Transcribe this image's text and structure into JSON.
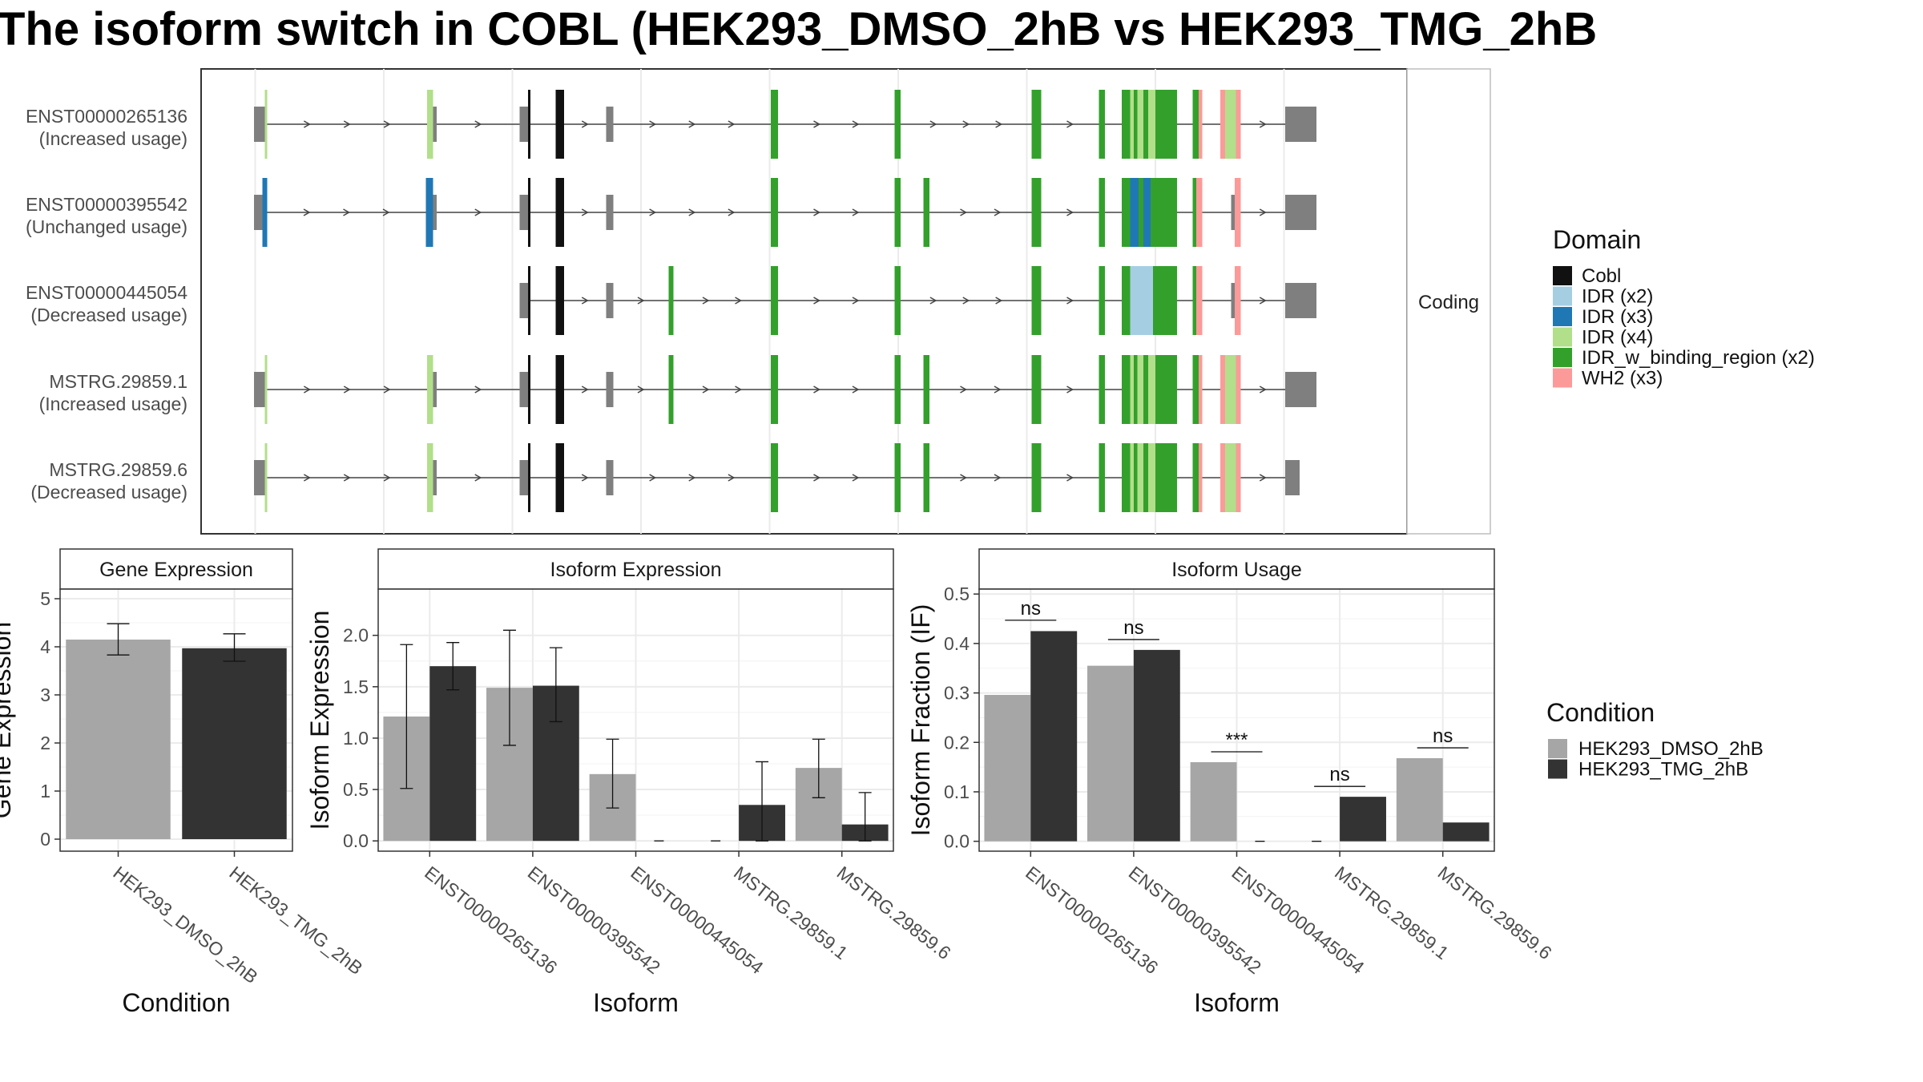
{
  "title": "The isoform switch in COBL (HEK293_DMSO_2hB vs HEK293_TMG_2hB",
  "colors": {
    "dmso": "#a6a6a6",
    "tmg": "#333333",
    "intron": "#444444",
    "utr": "#7f7f7f",
    "panel_border": "#333333",
    "strip_fill": "#ffffff",
    "grid": "#ebebeb"
  },
  "chart_data": [
    {
      "type": "gene_structure",
      "facet_label": "Coding",
      "legend_title": "Domain",
      "domains": [
        {
          "name": "Cobl",
          "color": "#111111"
        },
        {
          "name": "IDR (x2)",
          "color": "#a6cee3"
        },
        {
          "name": "IDR (x3)",
          "color": "#1f78b4"
        },
        {
          "name": "IDR (x4)",
          "color": "#b2df8a"
        },
        {
          "name": "IDR_w_binding_region (x2)",
          "color": "#33a02c"
        },
        {
          "name": "WH2 (x3)",
          "color": "#fb9a99"
        }
      ],
      "transcripts": [
        {
          "id": "ENST00000265136",
          "usage": "(Increased usage)",
          "start": 209,
          "end": 1088,
          "exons": [
            [
              204,
              213,
              "utr"
            ],
            [
              213,
              215,
              "IDR (x4)"
            ],
            [
              348,
              353,
              "IDR (x4)"
            ],
            [
              353,
              356,
              "utr"
            ],
            [
              425,
              432,
              "utr"
            ],
            [
              432,
              434,
              "Cobl"
            ],
            [
              455,
              462,
              "Cobl"
            ],
            [
              497,
              503,
              "utr"
            ],
            [
              634,
              640,
              "IDR_w_binding_region (x2)"
            ],
            [
              737,
              742,
              "IDR_w_binding_region (x2)"
            ],
            [
              851,
              859,
              "IDR_w_binding_region (x2)"
            ],
            [
              907,
              912,
              "IDR_w_binding_region (x2)"
            ],
            [
              926,
              933,
              "IDR_w_binding_region (x2)"
            ],
            [
              933,
              936,
              "IDR (x4)"
            ],
            [
              936,
              939,
              "IDR_w_binding_region (x2)"
            ],
            [
              939,
              944,
              "IDR (x4)"
            ],
            [
              944,
              948,
              "IDR_w_binding_region (x2)"
            ],
            [
              948,
              954,
              "IDR (x4)"
            ],
            [
              954,
              972,
              "IDR_w_binding_region (x2)"
            ],
            [
              985,
              990,
              "IDR_w_binding_region (x2)"
            ],
            [
              990,
              993,
              "WH2 (x3)"
            ],
            [
              1008,
              1012,
              "WH2 (x3)"
            ],
            [
              1012,
              1021,
              "IDR (x4)"
            ],
            [
              1021,
              1025,
              "WH2 (x3)"
            ],
            [
              1062,
              1066,
              "utr"
            ],
            [
              1066,
              1088,
              "utr"
            ]
          ]
        },
        {
          "id": "ENST00000395542",
          "usage": "(Unchanged usage)",
          "start": 209,
          "end": 1088,
          "exons": [
            [
              204,
              211,
              "utr"
            ],
            [
              211,
              215,
              "IDR (x3)"
            ],
            [
              347,
              353,
              "IDR (x3)"
            ],
            [
              353,
              356,
              "utr"
            ],
            [
              425,
              432,
              "utr"
            ],
            [
              432,
              434,
              "Cobl"
            ],
            [
              455,
              462,
              "Cobl"
            ],
            [
              497,
              503,
              "utr"
            ],
            [
              634,
              640,
              "IDR_w_binding_region (x2)"
            ],
            [
              737,
              742,
              "IDR_w_binding_region (x2)"
            ],
            [
              761,
              766,
              "IDR_w_binding_region (x2)"
            ],
            [
              851,
              859,
              "IDR_w_binding_region (x2)"
            ],
            [
              907,
              912,
              "IDR_w_binding_region (x2)"
            ],
            [
              926,
              933,
              "IDR_w_binding_region (x2)"
            ],
            [
              933,
              940,
              "IDR (x3)"
            ],
            [
              940,
              944,
              "IDR_w_binding_region (x2)"
            ],
            [
              944,
              950,
              "IDR (x3)"
            ],
            [
              950,
              956,
              "IDR_w_binding_region (x2)"
            ],
            [
              956,
              972,
              "IDR_w_binding_region (x2)"
            ],
            [
              985,
              988,
              "IDR_w_binding_region (x2)"
            ],
            [
              988,
              993,
              "WH2 (x3)"
            ],
            [
              1017,
              1020,
              "utr"
            ],
            [
              1020,
              1025,
              "WH2 (x3)"
            ],
            [
              1062,
              1066,
              "utr"
            ],
            [
              1066,
              1088,
              "utr"
            ]
          ]
        },
        {
          "id": "ENST00000445054",
          "usage": "(Decreased usage)",
          "start": 428,
          "end": 1088,
          "exons": [
            [
              425,
              432,
              "utr"
            ],
            [
              432,
              434,
              "Cobl"
            ],
            [
              455,
              462,
              "Cobl"
            ],
            [
              497,
              503,
              "utr"
            ],
            [
              549,
              553,
              "IDR_w_binding_region (x2)"
            ],
            [
              634,
              640,
              "IDR_w_binding_region (x2)"
            ],
            [
              737,
              742,
              "IDR_w_binding_region (x2)"
            ],
            [
              851,
              859,
              "IDR_w_binding_region (x2)"
            ],
            [
              907,
              912,
              "IDR_w_binding_region (x2)"
            ],
            [
              926,
              933,
              "IDR_w_binding_region (x2)"
            ],
            [
              933,
              952,
              "IDR (x2)"
            ],
            [
              952,
              972,
              "IDR_w_binding_region (x2)"
            ],
            [
              985,
              988,
              "IDR_w_binding_region (x2)"
            ],
            [
              988,
              993,
              "WH2 (x3)"
            ],
            [
              1017,
              1020,
              "utr"
            ],
            [
              1020,
              1025,
              "WH2 (x3)"
            ],
            [
              1062,
              1066,
              "utr"
            ],
            [
              1066,
              1088,
              "utr"
            ]
          ]
        },
        {
          "id": "MSTRG.29859.1",
          "usage": "(Increased usage)",
          "start": 209,
          "end": 1088,
          "exons": [
            [
              204,
              213,
              "utr"
            ],
            [
              213,
              215,
              "IDR (x4)"
            ],
            [
              348,
              353,
              "IDR (x4)"
            ],
            [
              353,
              356,
              "utr"
            ],
            [
              425,
              432,
              "utr"
            ],
            [
              432,
              434,
              "Cobl"
            ],
            [
              455,
              462,
              "Cobl"
            ],
            [
              497,
              503,
              "utr"
            ],
            [
              549,
              553,
              "IDR_w_binding_region (x2)"
            ],
            [
              634,
              640,
              "IDR_w_binding_region (x2)"
            ],
            [
              737,
              742,
              "IDR_w_binding_region (x2)"
            ],
            [
              761,
              766,
              "IDR_w_binding_region (x2)"
            ],
            [
              851,
              859,
              "IDR_w_binding_region (x2)"
            ],
            [
              907,
              912,
              "IDR_w_binding_region (x2)"
            ],
            [
              926,
              933,
              "IDR_w_binding_region (x2)"
            ],
            [
              933,
              936,
              "IDR (x4)"
            ],
            [
              936,
              939,
              "IDR_w_binding_region (x2)"
            ],
            [
              939,
              944,
              "IDR (x4)"
            ],
            [
              944,
              948,
              "IDR_w_binding_region (x2)"
            ],
            [
              948,
              954,
              "IDR (x4)"
            ],
            [
              954,
              972,
              "IDR_w_binding_region (x2)"
            ],
            [
              985,
              990,
              "IDR_w_binding_region (x2)"
            ],
            [
              990,
              993,
              "WH2 (x3)"
            ],
            [
              1008,
              1012,
              "WH2 (x3)"
            ],
            [
              1012,
              1021,
              "IDR (x4)"
            ],
            [
              1021,
              1025,
              "WH2 (x3)"
            ],
            [
              1062,
              1066,
              "utr"
            ],
            [
              1066,
              1088,
              "utr"
            ]
          ]
        },
        {
          "id": "MSTRG.29859.6",
          "usage": "(Decreased usage)",
          "start": 209,
          "end": 1074,
          "exons": [
            [
              204,
              213,
              "utr"
            ],
            [
              213,
              215,
              "IDR (x4)"
            ],
            [
              348,
              353,
              "IDR (x4)"
            ],
            [
              353,
              356,
              "utr"
            ],
            [
              425,
              432,
              "utr"
            ],
            [
              432,
              434,
              "Cobl"
            ],
            [
              455,
              462,
              "Cobl"
            ],
            [
              497,
              503,
              "utr"
            ],
            [
              634,
              640,
              "IDR_w_binding_region (x2)"
            ],
            [
              737,
              742,
              "IDR_w_binding_region (x2)"
            ],
            [
              761,
              766,
              "IDR_w_binding_region (x2)"
            ],
            [
              851,
              859,
              "IDR_w_binding_region (x2)"
            ],
            [
              907,
              912,
              "IDR_w_binding_region (x2)"
            ],
            [
              926,
              933,
              "IDR_w_binding_region (x2)"
            ],
            [
              933,
              936,
              "IDR (x4)"
            ],
            [
              936,
              939,
              "IDR_w_binding_region (x2)"
            ],
            [
              939,
              944,
              "IDR (x4)"
            ],
            [
              944,
              948,
              "IDR_w_binding_region (x2)"
            ],
            [
              948,
              954,
              "IDR (x4)"
            ],
            [
              954,
              972,
              "IDR_w_binding_region (x2)"
            ],
            [
              985,
              990,
              "IDR_w_binding_region (x2)"
            ],
            [
              990,
              993,
              "WH2 (x3)"
            ],
            [
              1008,
              1012,
              "WH2 (x3)"
            ],
            [
              1012,
              1021,
              "IDR (x4)"
            ],
            [
              1021,
              1025,
              "WH2 (x3)"
            ],
            [
              1062,
              1066,
              "utr"
            ],
            [
              1066,
              1074,
              "utr"
            ]
          ]
        }
      ]
    },
    {
      "type": "bar",
      "strip": "Gene Expression",
      "xlabel": "Condition",
      "ylabel": "Gene Expression",
      "ylim": [
        -0.25,
        5.2
      ],
      "yticks": [
        0,
        1,
        2,
        3,
        4,
        5
      ],
      "categories": [
        "HEK293_DMSO_2hB",
        "HEK293_TMG_2hB"
      ],
      "values": [
        4.15,
        3.97
      ],
      "errors": [
        [
          3.83,
          4.48
        ],
        [
          3.7,
          4.27
        ]
      ],
      "bar_colors": [
        "dmso",
        "tmg"
      ]
    },
    {
      "type": "bar",
      "strip": "Isoform Expression",
      "xlabel": "Isoform",
      "ylabel": "Isoform Expression",
      "ylim": [
        -0.1,
        2.45
      ],
      "yticks": [
        0.0,
        0.5,
        1.0,
        1.5,
        2.0
      ],
      "tick_labels": [
        "0.0",
        "0.5",
        "1.0",
        "1.5",
        "2.0"
      ],
      "categories": [
        "ENST00000265136",
        "ENST00000395542",
        "ENST00000445054",
        "MSTRG.29859.1",
        "MSTRG.29859.6"
      ],
      "series": [
        {
          "name": "HEK293_DMSO_2hB",
          "values": [
            1.21,
            1.49,
            0.65,
            0.0,
            0.71
          ],
          "errors": [
            [
              0.51,
              1.91
            ],
            [
              0.93,
              2.05
            ],
            [
              0.32,
              0.99
            ],
            [
              0.0,
              0.0
            ],
            [
              0.42,
              0.99
            ]
          ]
        },
        {
          "name": "HEK293_TMG_2hB",
          "values": [
            1.7,
            1.51,
            0.0,
            0.35,
            0.16
          ],
          "errors": [
            [
              1.47,
              1.93
            ],
            [
              1.16,
              1.88
            ],
            [
              0.0,
              0.0
            ],
            [
              0.0,
              0.77
            ],
            [
              0.0,
              0.47
            ]
          ]
        }
      ]
    },
    {
      "type": "bar",
      "strip": "Isoform Usage",
      "xlabel": "Isoform",
      "ylabel": "Isoform Fraction (IF)",
      "ylim": [
        -0.02,
        0.51
      ],
      "yticks": [
        0.0,
        0.1,
        0.2,
        0.3,
        0.4,
        0.5
      ],
      "tick_labels": [
        "0.0",
        "0.1",
        "0.2",
        "0.3",
        "0.4",
        "0.5"
      ],
      "categories": [
        "ENST00000265136",
        "ENST00000395542",
        "ENST00000445054",
        "MSTRG.29859.1",
        "MSTRG.29859.6"
      ],
      "series": [
        {
          "name": "HEK293_DMSO_2hB",
          "values": [
            0.296,
            0.355,
            0.16,
            0.0,
            0.168
          ]
        },
        {
          "name": "HEK293_TMG_2hB",
          "values": [
            0.425,
            0.387,
            0.0,
            0.09,
            0.038
          ]
        }
      ],
      "significance": [
        {
          "label": "ns",
          "y": 0.447
        },
        {
          "label": "ns",
          "y": 0.408
        },
        {
          "label": "***",
          "y": 0.181
        },
        {
          "label": "ns",
          "y": 0.111
        },
        {
          "label": "ns",
          "y": 0.189
        }
      ]
    }
  ],
  "legend_condition": {
    "title": "Condition",
    "items": [
      {
        "label": "HEK293_DMSO_2hB",
        "color": "dmso"
      },
      {
        "label": "HEK293_TMG_2hB",
        "color": "tmg"
      }
    ]
  }
}
